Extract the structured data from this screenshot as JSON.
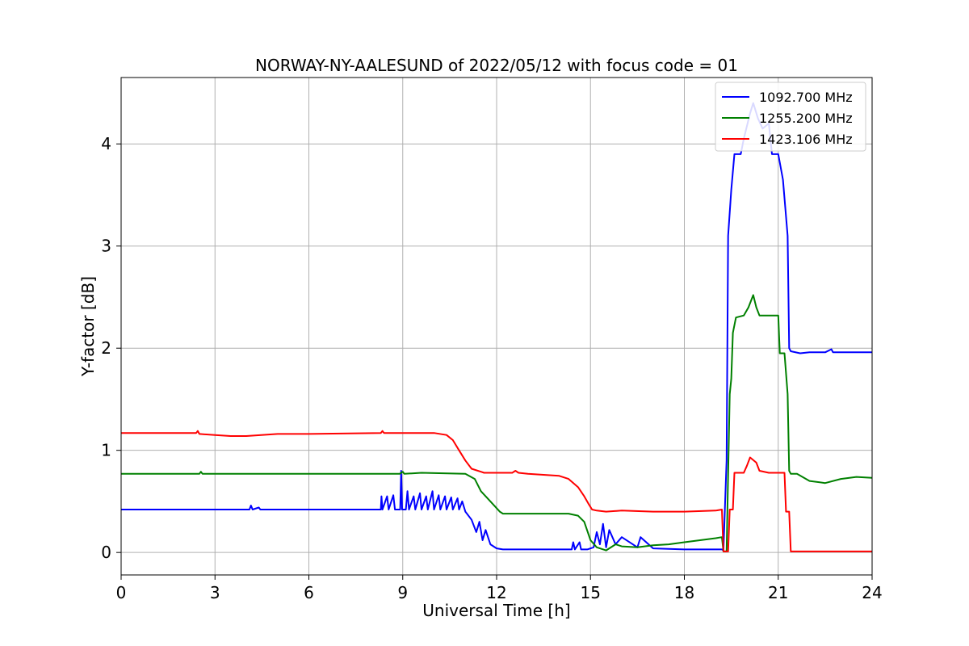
{
  "chart_data": {
    "type": "line",
    "title": "NORWAY-NY-AALESUND of 2022/05/12 with focus code = 01",
    "xlabel": "Universal Time [h]",
    "ylabel": "Y-factor [dB]",
    "xlim": [
      0,
      24
    ],
    "ylim": [
      -0.22,
      4.65
    ],
    "xticks": [
      0,
      3,
      6,
      9,
      12,
      15,
      18,
      21,
      24
    ],
    "yticks": [
      0,
      1,
      2,
      3,
      4
    ],
    "grid": true,
    "legend_position": "top-right",
    "series": [
      {
        "name": "1092.700 MHz",
        "color": "#0000ff",
        "points": [
          [
            0,
            0.42
          ],
          [
            4.1,
            0.42
          ],
          [
            4.15,
            0.46
          ],
          [
            4.2,
            0.42
          ],
          [
            4.4,
            0.44
          ],
          [
            4.45,
            0.42
          ],
          [
            8.3,
            0.42
          ],
          [
            8.32,
            0.55
          ],
          [
            8.35,
            0.42
          ],
          [
            8.5,
            0.55
          ],
          [
            8.55,
            0.42
          ],
          [
            8.7,
            0.56
          ],
          [
            8.75,
            0.42
          ],
          [
            8.92,
            0.42
          ],
          [
            8.95,
            0.8
          ],
          [
            8.98,
            0.42
          ],
          [
            9.1,
            0.42
          ],
          [
            9.15,
            0.6
          ],
          [
            9.2,
            0.42
          ],
          [
            9.35,
            0.55
          ],
          [
            9.4,
            0.42
          ],
          [
            9.55,
            0.58
          ],
          [
            9.6,
            0.42
          ],
          [
            9.75,
            0.55
          ],
          [
            9.8,
            0.42
          ],
          [
            9.95,
            0.6
          ],
          [
            10.0,
            0.42
          ],
          [
            10.15,
            0.56
          ],
          [
            10.2,
            0.42
          ],
          [
            10.35,
            0.55
          ],
          [
            10.4,
            0.42
          ],
          [
            10.55,
            0.54
          ],
          [
            10.6,
            0.42
          ],
          [
            10.75,
            0.53
          ],
          [
            10.8,
            0.42
          ],
          [
            10.9,
            0.5
          ],
          [
            11.0,
            0.4
          ],
          [
            11.2,
            0.32
          ],
          [
            11.35,
            0.2
          ],
          [
            11.45,
            0.3
          ],
          [
            11.55,
            0.12
          ],
          [
            11.65,
            0.22
          ],
          [
            11.8,
            0.08
          ],
          [
            12.0,
            0.04
          ],
          [
            12.2,
            0.03
          ],
          [
            14.4,
            0.03
          ],
          [
            14.45,
            0.1
          ],
          [
            14.5,
            0.03
          ],
          [
            14.65,
            0.1
          ],
          [
            14.7,
            0.03
          ],
          [
            14.9,
            0.03
          ],
          [
            15.1,
            0.05
          ],
          [
            15.2,
            0.2
          ],
          [
            15.3,
            0.08
          ],
          [
            15.4,
            0.28
          ],
          [
            15.5,
            0.05
          ],
          [
            15.6,
            0.22
          ],
          [
            15.8,
            0.08
          ],
          [
            16.0,
            0.15
          ],
          [
            16.5,
            0.05
          ],
          [
            16.6,
            0.15
          ],
          [
            17.0,
            0.04
          ],
          [
            18.0,
            0.03
          ],
          [
            19.2,
            0.03
          ],
          [
            19.25,
            0.02
          ],
          [
            19.35,
            0.9
          ],
          [
            19.4,
            3.1
          ],
          [
            19.5,
            3.55
          ],
          [
            19.6,
            3.9
          ],
          [
            19.8,
            3.9
          ],
          [
            19.9,
            4.05
          ],
          [
            20.1,
            4.3
          ],
          [
            20.2,
            4.4
          ],
          [
            20.35,
            4.25
          ],
          [
            20.5,
            4.15
          ],
          [
            20.7,
            4.2
          ],
          [
            20.8,
            3.9
          ],
          [
            21.0,
            3.9
          ],
          [
            21.15,
            3.65
          ],
          [
            21.3,
            3.1
          ],
          [
            21.35,
            2.0
          ],
          [
            21.4,
            1.97
          ],
          [
            21.7,
            1.95
          ],
          [
            22.0,
            1.96
          ],
          [
            22.5,
            1.96
          ],
          [
            22.7,
            1.99
          ],
          [
            22.75,
            1.96
          ],
          [
            24,
            1.96
          ]
        ]
      },
      {
        "name": "1255.200 MHz",
        "color": "#008000",
        "points": [
          [
            0,
            0.77
          ],
          [
            2.5,
            0.77
          ],
          [
            2.55,
            0.79
          ],
          [
            2.6,
            0.77
          ],
          [
            8.9,
            0.77
          ],
          [
            9.0,
            0.79
          ],
          [
            9.05,
            0.77
          ],
          [
            9.6,
            0.78
          ],
          [
            11.0,
            0.77
          ],
          [
            11.3,
            0.72
          ],
          [
            11.5,
            0.6
          ],
          [
            11.8,
            0.5
          ],
          [
            12.1,
            0.4
          ],
          [
            12.2,
            0.38
          ],
          [
            14.3,
            0.38
          ],
          [
            14.6,
            0.36
          ],
          [
            14.8,
            0.3
          ],
          [
            15.0,
            0.12
          ],
          [
            15.2,
            0.05
          ],
          [
            15.5,
            0.02
          ],
          [
            15.8,
            0.08
          ],
          [
            16.0,
            0.06
          ],
          [
            16.5,
            0.05
          ],
          [
            17.0,
            0.07
          ],
          [
            17.5,
            0.08
          ],
          [
            18.0,
            0.1
          ],
          [
            18.5,
            0.12
          ],
          [
            19.0,
            0.14
          ],
          [
            19.2,
            0.15
          ],
          [
            19.25,
            0.01
          ],
          [
            19.35,
            0.01
          ],
          [
            19.45,
            1.55
          ],
          [
            19.5,
            1.7
          ],
          [
            19.55,
            2.15
          ],
          [
            19.65,
            2.3
          ],
          [
            19.9,
            2.32
          ],
          [
            20.05,
            2.4
          ],
          [
            20.2,
            2.52
          ],
          [
            20.3,
            2.4
          ],
          [
            20.4,
            2.32
          ],
          [
            20.9,
            2.32
          ],
          [
            21.0,
            2.32
          ],
          [
            21.05,
            1.95
          ],
          [
            21.2,
            1.95
          ],
          [
            21.3,
            1.55
          ],
          [
            21.35,
            0.8
          ],
          [
            21.4,
            0.77
          ],
          [
            21.6,
            0.77
          ],
          [
            22.0,
            0.7
          ],
          [
            22.5,
            0.68
          ],
          [
            23.0,
            0.72
          ],
          [
            23.5,
            0.74
          ],
          [
            24,
            0.73
          ]
        ]
      },
      {
        "name": "1423.106 MHz",
        "color": "#ff0000",
        "points": [
          [
            0,
            1.17
          ],
          [
            2.4,
            1.17
          ],
          [
            2.45,
            1.19
          ],
          [
            2.5,
            1.16
          ],
          [
            3.0,
            1.15
          ],
          [
            3.5,
            1.14
          ],
          [
            4.0,
            1.14
          ],
          [
            5.0,
            1.16
          ],
          [
            6.0,
            1.16
          ],
          [
            8.3,
            1.17
          ],
          [
            8.35,
            1.19
          ],
          [
            8.4,
            1.17
          ],
          [
            10.0,
            1.17
          ],
          [
            10.4,
            1.15
          ],
          [
            10.6,
            1.1
          ],
          [
            10.8,
            1.0
          ],
          [
            11.0,
            0.9
          ],
          [
            11.2,
            0.82
          ],
          [
            11.5,
            0.79
          ],
          [
            11.6,
            0.78
          ],
          [
            12.5,
            0.78
          ],
          [
            12.6,
            0.8
          ],
          [
            12.7,
            0.78
          ],
          [
            13.0,
            0.77
          ],
          [
            13.5,
            0.76
          ],
          [
            14.0,
            0.75
          ],
          [
            14.3,
            0.72
          ],
          [
            14.6,
            0.64
          ],
          [
            14.8,
            0.55
          ],
          [
            14.95,
            0.47
          ],
          [
            15.05,
            0.42
          ],
          [
            15.2,
            0.41
          ],
          [
            15.5,
            0.4
          ],
          [
            16.0,
            0.41
          ],
          [
            17.0,
            0.4
          ],
          [
            18.0,
            0.4
          ],
          [
            19.0,
            0.41
          ],
          [
            19.2,
            0.42
          ],
          [
            19.25,
            0.01
          ],
          [
            19.4,
            0.01
          ],
          [
            19.45,
            0.42
          ],
          [
            19.55,
            0.42
          ],
          [
            19.6,
            0.78
          ],
          [
            19.9,
            0.78
          ],
          [
            20.0,
            0.85
          ],
          [
            20.1,
            0.93
          ],
          [
            20.3,
            0.88
          ],
          [
            20.4,
            0.8
          ],
          [
            20.7,
            0.78
          ],
          [
            21.2,
            0.78
          ],
          [
            21.25,
            0.4
          ],
          [
            21.35,
            0.4
          ],
          [
            21.4,
            0.01
          ],
          [
            24,
            0.01
          ]
        ]
      }
    ]
  }
}
